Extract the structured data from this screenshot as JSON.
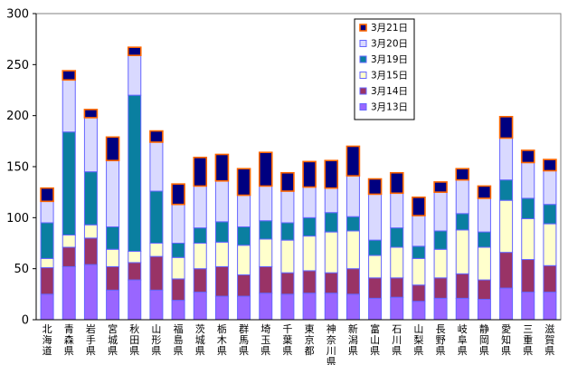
{
  "chart_data": {
    "type": "bar",
    "stacked": true,
    "title": "",
    "xlabel": "",
    "ylabel": "",
    "ylim": [
      0,
      300
    ],
    "yticks": [
      "0",
      "50",
      "100",
      "150",
      "200",
      "250",
      "300"
    ],
    "grid": false,
    "legend_position": "top-right",
    "categories": [
      "北海道",
      "青森県",
      "岩手県",
      "宮城県",
      "秋田県",
      "山形県",
      "福島県",
      "茨城県",
      "栃木県",
      "群馬県",
      "埼玉県",
      "千葉県",
      "東京都",
      "神奈川県",
      "新潟県",
      "富山県",
      "石川県",
      "山梨県",
      "長野県",
      "岐阜県",
      "静岡県",
      "愛知県",
      "三重県",
      "滋賀県"
    ],
    "series": [
      {
        "name": "3月13日",
        "color": "#9966ff",
        "values": [
          25,
          52,
          54,
          29,
          39,
          29,
          19,
          27,
          23,
          23,
          26,
          25,
          26,
          26,
          25,
          21,
          22,
          18,
          21,
          21,
          20,
          31,
          27,
          27
        ]
      },
      {
        "name": "3月14日",
        "color": "#993366",
        "values": [
          26,
          19,
          26,
          23,
          17,
          33,
          21,
          23,
          29,
          21,
          26,
          21,
          22,
          20,
          25,
          20,
          19,
          16,
          20,
          24,
          19,
          35,
          32,
          26
        ]
      },
      {
        "name": "3月15日",
        "color": "#ffffcc",
        "values": [
          9,
          12,
          13,
          17,
          11,
          13,
          21,
          25,
          24,
          29,
          27,
          32,
          34,
          40,
          37,
          22,
          30,
          26,
          28,
          43,
          32,
          51,
          40,
          41
        ]
      },
      {
        "name": "3月19日",
        "color": "#0a7fa0",
        "values": [
          35,
          101,
          52,
          22,
          153,
          51,
          14,
          15,
          20,
          18,
          18,
          17,
          18,
          19,
          14,
          15,
          19,
          12,
          18,
          16,
          15,
          20,
          20,
          19
        ]
      },
      {
        "name": "3月20日",
        "color": "#d9d9ff",
        "values": [
          21,
          51,
          53,
          65,
          39,
          48,
          38,
          41,
          40,
          31,
          34,
          31,
          30,
          24,
          40,
          45,
          34,
          30,
          38,
          33,
          33,
          41,
          35,
          33
        ]
      },
      {
        "name": "3月21日",
        "color": "#000080",
        "values": [
          13,
          9,
          8,
          23,
          8,
          11,
          20,
          28,
          26,
          26,
          33,
          18,
          25,
          27,
          29,
          15,
          20,
          18,
          10,
          11,
          12,
          21,
          12,
          11
        ]
      }
    ]
  }
}
